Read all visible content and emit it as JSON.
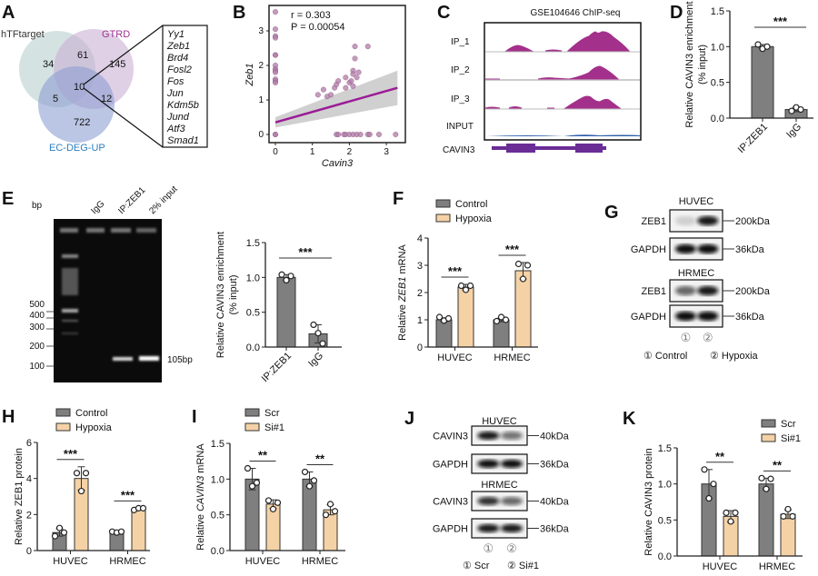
{
  "panel_labels": [
    "A",
    "B",
    "C",
    "D",
    "E",
    "F",
    "G",
    "H",
    "I",
    "J",
    "K"
  ],
  "venn": {
    "sets": [
      "hTFtarget",
      "GTRD",
      "EC-DEG-UP"
    ],
    "set_colors": [
      "#b9cfcf",
      "#c9b0d4",
      "#8d9fd2"
    ],
    "label_colors": [
      "#333333",
      "#a0308f",
      "#2a7fc0"
    ],
    "counts": {
      "htf_only": "34",
      "htf_gtrd": "61",
      "gtrd_only": "145",
      "all": "10",
      "htf_ec": "5",
      "gtrd_ec": "12",
      "ec_only": "722"
    },
    "genes": [
      "Yy1",
      "Zeb1",
      "Brd4",
      "Fosl2",
      "Fos",
      "Jun",
      "Kdm5b",
      "Jund",
      "Atf3",
      "Smad1"
    ]
  },
  "chipseq": {
    "title": "GSE104646 ChIP-seq",
    "tracks": [
      "IP_1",
      "IP_2",
      "IP_3",
      "INPUT"
    ],
    "gene": "CAVIN3",
    "track_color": "#a3308a",
    "input_color": "#2f5fa8",
    "gene_color": "#6a2d96"
  },
  "gel": {
    "bp_label": "bp",
    "lanes": [
      "IgG",
      "IP:ZEB1",
      "2% input"
    ],
    "markers": [
      "500",
      "400",
      "300",
      "200",
      "100"
    ],
    "band_label": "105bp"
  },
  "blot_G": {
    "groups": [
      "HUVEC",
      "HRMEC"
    ],
    "rows": [
      "ZEB1",
      "GAPDH"
    ],
    "sizes": [
      "200kDa",
      "36kDa"
    ],
    "lane_numbers": [
      "①",
      "②"
    ],
    "legend": [
      "① Control",
      "② Hypoxia"
    ]
  },
  "blot_J": {
    "groups": [
      "HUVEC",
      "HRMEC"
    ],
    "rows": [
      "CAVIN3",
      "GAPDH"
    ],
    "sizes": [
      "40kDa",
      "36kDa"
    ],
    "lane_numbers": [
      "①",
      "②"
    ],
    "legend": [
      "① Scr",
      "② Si#1"
    ]
  },
  "colors": {
    "gray_bar": "#7f7f7f",
    "peach_bar": "#f5d2a6",
    "scatter_point": "#b07aa6",
    "regression": "#9b1b96",
    "ci_band": "#c8c8c8"
  },
  "chart_data": [
    {
      "panel": "B",
      "type": "scatter",
      "xlabel": "Cavin3",
      "ylabel": "Zeb1",
      "xlim": [
        0,
        3.4
      ],
      "ylim": [
        0,
        3.6
      ],
      "xticks": [
        "0",
        "1",
        "2",
        "3"
      ],
      "yticks": [
        "0",
        "1",
        "2",
        "3"
      ],
      "annotations": [
        "r = 0.303",
        "P = 0.00054"
      ],
      "points": [
        [
          0,
          3.55
        ],
        [
          0,
          3.05
        ],
        [
          0,
          2.85
        ],
        [
          0,
          2.8
        ],
        [
          0,
          2.3
        ],
        [
          0,
          2.3
        ],
        [
          0,
          2.0
        ],
        [
          0,
          1.9
        ],
        [
          0,
          1.85
        ],
        [
          0,
          1.8
        ],
        [
          0,
          1.6
        ],
        [
          0,
          1.55
        ],
        [
          0,
          1.5
        ],
        [
          0,
          0
        ],
        [
          0,
          0
        ],
        [
          1.15,
          1.15
        ],
        [
          1.3,
          1.3
        ],
        [
          1.4,
          1.1
        ],
        [
          1.5,
          1.15
        ],
        [
          1.6,
          1.35
        ],
        [
          1.65,
          1.45
        ],
        [
          1.7,
          1.55
        ],
        [
          1.9,
          1.35
        ],
        [
          1.9,
          1.65
        ],
        [
          2.0,
          1.5
        ],
        [
          2.05,
          1.55
        ],
        [
          2.1,
          1.4
        ],
        [
          2.1,
          1.85
        ],
        [
          2.15,
          2.2
        ],
        [
          2.15,
          2.55
        ],
        [
          2.2,
          1.65
        ],
        [
          2.25,
          1.8
        ],
        [
          2.5,
          2.55
        ],
        [
          2.1,
          1.75
        ],
        [
          1.65,
          0
        ],
        [
          1.7,
          0
        ],
        [
          1.85,
          0
        ],
        [
          1.9,
          0
        ],
        [
          2.0,
          0
        ],
        [
          2.1,
          0
        ],
        [
          2.2,
          0
        ],
        [
          2.3,
          0
        ],
        [
          2.5,
          0
        ],
        [
          2.55,
          0
        ],
        [
          2.8,
          0
        ],
        [
          3.25,
          0
        ]
      ],
      "fit": {
        "x": [
          0,
          3.3
        ],
        "y": [
          0.35,
          1.35
        ],
        "ci_low": [
          0.2,
          0.85
        ],
        "ci_high": [
          0.5,
          1.85
        ]
      }
    },
    {
      "panel": "D",
      "type": "bar",
      "ylabel": [
        "Relative CAVIN3 enrichment",
        "(% input)"
      ],
      "ylim": [
        0,
        1.5
      ],
      "yticks": [
        "0.0",
        "0.5",
        "1.0",
        "1.5"
      ],
      "categories": [
        "IP:ZEB1",
        "IgG"
      ],
      "series": [
        {
          "values": [
            1.0,
            0.12
          ],
          "errors": [
            0.03,
            0.03
          ],
          "points": [
            [
              1.03,
              0.97,
              1.0
            ],
            [
              0.1,
              0.15,
              0.12
            ]
          ]
        }
      ],
      "significance": [
        "***"
      ]
    },
    {
      "panel": "E",
      "type": "bar",
      "ylabel": [
        "Relative CAVIN3 enrichment",
        "(% input)"
      ],
      "ylim": [
        0,
        1.5
      ],
      "yticks": [
        "0.0",
        "0.5",
        "1.0",
        "1.5"
      ],
      "categories": [
        "IP:ZEB1",
        "IgG"
      ],
      "series": [
        {
          "values": [
            1.0,
            0.19
          ],
          "errors": [
            0.04,
            0.13
          ],
          "points": [
            [
              1.04,
              0.96,
              1.02
            ],
            [
              0.32,
              0.2,
              0.05
            ]
          ]
        }
      ],
      "significance": [
        "***"
      ]
    },
    {
      "panel": "F",
      "type": "bar",
      "ylabel": [
        "Relative ZEB1 mRNA"
      ],
      "ylim": [
        0,
        4
      ],
      "yticks": [
        "0",
        "1",
        "2",
        "3",
        "4"
      ],
      "categories": [
        "HUVEC",
        "HRMEC"
      ],
      "series": [
        {
          "name": "Control",
          "values": [
            1.0,
            1.0
          ],
          "errors": [
            0.07,
            0.07
          ],
          "points": [
            [
              1.1,
              0.97,
              1.05
            ],
            [
              0.95,
              1.1,
              1.0
            ]
          ]
        },
        {
          "name": "Hypoxia",
          "values": [
            2.2,
            2.8
          ],
          "errors": [
            0.1,
            0.3
          ],
          "points": [
            [
              2.25,
              2.1,
              2.25
            ],
            [
              3.05,
              2.5,
              3.0
            ]
          ]
        }
      ],
      "significance": [
        "***",
        "***"
      ]
    },
    {
      "panel": "H",
      "type": "bar",
      "ylabel": [
        "Relative ZEB1 protein"
      ],
      "ylim": [
        0,
        6
      ],
      "yticks": [
        "0",
        "2",
        "4",
        "6"
      ],
      "categories": [
        "HUVEC",
        "HRMEC"
      ],
      "series": [
        {
          "name": "Control",
          "values": [
            1.0,
            1.0
          ],
          "errors": [
            0.2,
            0.05
          ],
          "points": [
            [
              0.8,
              1.25,
              1.0
            ],
            [
              1.05,
              1.0,
              1.05
            ]
          ]
        },
        {
          "name": "Hypoxia",
          "values": [
            4.0,
            2.3
          ],
          "errors": [
            0.65,
            0.05
          ],
          "points": [
            [
              4.3,
              3.3,
              4.3
            ],
            [
              2.25,
              2.35,
              2.35
            ]
          ]
        }
      ],
      "significance": [
        "***",
        "***"
      ]
    },
    {
      "panel": "I",
      "type": "bar",
      "ylabel": [
        "Relative CAVIN3 mRNA"
      ],
      "ylim": [
        0,
        1.5
      ],
      "yticks": [
        "0.0",
        "0.5",
        "1.0",
        "1.5"
      ],
      "categories": [
        "HUVEC",
        "HRMEC"
      ],
      "series": [
        {
          "name": "Scr",
          "values": [
            1.0,
            1.0
          ],
          "errors": [
            0.15,
            0.1
          ],
          "points": [
            [
              1.15,
              0.9,
              0.95
            ],
            [
              1.1,
              0.9,
              0.98
            ]
          ]
        },
        {
          "name": "Si#1",
          "values": [
            0.65,
            0.57
          ],
          "errors": [
            0.06,
            0.07
          ],
          "points": [
            [
              0.7,
              0.58,
              0.67
            ],
            [
              0.5,
              0.65,
              0.55
            ]
          ]
        }
      ],
      "significance": [
        "**",
        "**"
      ]
    },
    {
      "panel": "K",
      "type": "bar",
      "ylabel": [
        "Relative CAVIN3 protein"
      ],
      "ylim": [
        0,
        1.5
      ],
      "yticks": [
        "0.0",
        "0.5",
        "1.0",
        "1.5"
      ],
      "categories": [
        "HUVEC",
        "HRMEC"
      ],
      "series": [
        {
          "name": "Scr",
          "values": [
            1.0,
            1.0
          ],
          "errors": [
            0.2,
            0.08
          ],
          "points": [
            [
              1.2,
              0.8,
              1.0
            ],
            [
              1.08,
              0.93,
              1.07
            ]
          ]
        },
        {
          "name": "Si#1",
          "values": [
            0.55,
            0.58
          ],
          "errors": [
            0.08,
            0.06
          ],
          "points": [
            [
              0.6,
              0.48,
              0.6
            ],
            [
              0.55,
              0.65,
              0.55
            ]
          ]
        }
      ],
      "significance": [
        "**",
        "**"
      ]
    }
  ]
}
